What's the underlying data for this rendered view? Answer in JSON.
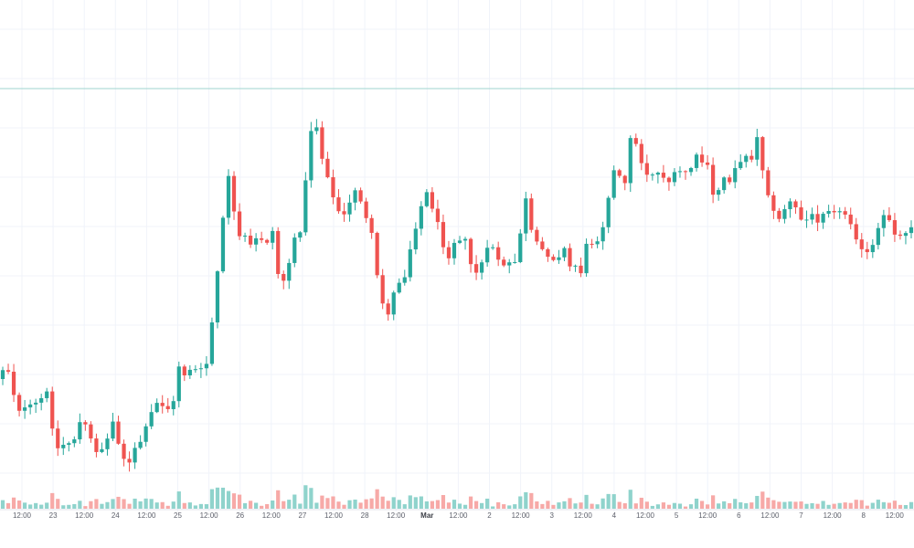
{
  "chart_data": {
    "type": "candlestick",
    "x_ticks": [
      "12:00",
      "23",
      "12:00",
      "24",
      "12:00",
      "25",
      "12:00",
      "26",
      "12:00",
      "27",
      "12:00",
      "28",
      "12:00",
      "Mar",
      "12:00",
      "2",
      "12:00",
      "3",
      "12:00",
      "4",
      "12:00",
      "5",
      "12:00",
      "6",
      "12:00",
      "7",
      "12:00",
      "8",
      "12:00"
    ],
    "x_tick_strong": [
      "Mar"
    ],
    "horizontal_line_level": 97,
    "grid": true,
    "colors": {
      "up": "#26a69a",
      "down": "#ef5350",
      "up_vol": "#8fd3cc",
      "down_vol": "#f7a9a7",
      "line": "#9fd6cf",
      "grid": "#f0f3fa"
    },
    "anchors": [
      [
        0,
        415
      ],
      [
        8,
        400
      ],
      [
        12,
        405
      ],
      [
        16,
        420
      ],
      [
        20,
        440
      ],
      [
        26,
        450
      ],
      [
        34,
        448
      ],
      [
        44,
        442
      ],
      [
        52,
        432
      ],
      [
        58,
        432
      ],
      [
        62,
        490
      ],
      [
        68,
        492
      ],
      [
        76,
        482
      ],
      [
        82,
        488
      ],
      [
        88,
        465
      ],
      [
        94,
        460
      ],
      [
        100,
        478
      ],
      [
        108,
        492
      ],
      [
        118,
        490
      ],
      [
        126,
        460
      ],
      [
        132,
        480
      ],
      [
        138,
        500
      ],
      [
        144,
        510
      ],
      [
        152,
        490
      ],
      [
        160,
        478
      ],
      [
        166,
        462
      ],
      [
        172,
        442
      ],
      [
        180,
        442
      ],
      [
        188,
        448
      ],
      [
        194,
        440
      ],
      [
        198,
        398
      ],
      [
        204,
        410
      ],
      [
        212,
        402
      ],
      [
        220,
        408
      ],
      [
        226,
        406
      ],
      [
        232,
        390
      ],
      [
        236,
        340
      ],
      [
        242,
        290
      ],
      [
        246,
        258
      ],
      [
        250,
        195
      ],
      [
        256,
        185
      ],
      [
        260,
        250
      ],
      [
        266,
        265
      ],
      [
        272,
        260
      ],
      [
        278,
        272
      ],
      [
        286,
        258
      ],
      [
        294,
        265
      ],
      [
        302,
        252
      ],
      [
        306,
        290
      ],
      [
        310,
        320
      ],
      [
        316,
        295
      ],
      [
        320,
        285
      ],
      [
        326,
        262
      ],
      [
        332,
        248
      ],
      [
        338,
        195
      ],
      [
        344,
        135
      ],
      [
        350,
        138
      ],
      [
        354,
        170
      ],
      [
        360,
        182
      ],
      [
        366,
        215
      ],
      [
        372,
        228
      ],
      [
        378,
        240
      ],
      [
        384,
        230
      ],
      [
        390,
        205
      ],
      [
        396,
        210
      ],
      [
        402,
        240
      ],
      [
        408,
        245
      ],
      [
        412,
        280
      ],
      [
        418,
        320
      ],
      [
        424,
        340
      ],
      [
        430,
        342
      ],
      [
        436,
        310
      ],
      [
        442,
        305
      ],
      [
        448,
        298
      ],
      [
        452,
        270
      ],
      [
        458,
        245
      ],
      [
        464,
        225
      ],
      [
        468,
        210
      ],
      [
        474,
        218
      ],
      [
        480,
        240
      ],
      [
        486,
        262
      ],
      [
        494,
        278
      ],
      [
        502,
        258
      ],
      [
        508,
        260
      ],
      [
        514,
        268
      ],
      [
        520,
        300
      ],
      [
        526,
        296
      ],
      [
        532,
        285
      ],
      [
        538,
        272
      ],
      [
        544,
        268
      ],
      [
        550,
        290
      ],
      [
        556,
        294
      ],
      [
        562,
        290
      ],
      [
        568,
        286
      ],
      [
        572,
        258
      ],
      [
        576,
        200
      ],
      [
        580,
        235
      ],
      [
        586,
        262
      ],
      [
        592,
        272
      ],
      [
        600,
        275
      ],
      [
        608,
        282
      ],
      [
        614,
        278
      ],
      [
        620,
        272
      ],
      [
        626,
        292
      ],
      [
        632,
        290
      ],
      [
        640,
        298
      ],
      [
        646,
        262
      ],
      [
        652,
        265
      ],
      [
        658,
        258
      ],
      [
        664,
        242
      ],
      [
        668,
        215
      ],
      [
        674,
        188
      ],
      [
        680,
        192
      ],
      [
        686,
        215
      ],
      [
        690,
        155
      ],
      [
        696,
        138
      ],
      [
        700,
        170
      ],
      [
        706,
        178
      ],
      [
        712,
        192
      ],
      [
        718,
        188
      ],
      [
        724,
        190
      ],
      [
        730,
        192
      ],
      [
        736,
        200
      ],
      [
        742,
        192
      ],
      [
        748,
        188
      ],
      [
        754,
        188
      ],
      [
        760,
        182
      ],
      [
        766,
        172
      ],
      [
        772,
        178
      ],
      [
        778,
        186
      ],
      [
        784,
        220
      ],
      [
        790,
        205
      ],
      [
        796,
        192
      ],
      [
        800,
        200
      ],
      [
        806,
        180
      ],
      [
        812,
        185
      ],
      [
        818,
        165
      ],
      [
        824,
        178
      ],
      [
        830,
        145
      ],
      [
        836,
        178
      ],
      [
        842,
        205
      ],
      [
        848,
        232
      ],
      [
        854,
        240
      ],
      [
        860,
        230
      ],
      [
        866,
        222
      ],
      [
        872,
        225
      ],
      [
        878,
        240
      ],
      [
        884,
        242
      ],
      [
        890,
        236
      ],
      [
        896,
        242
      ],
      [
        902,
        230
      ],
      [
        908,
        228
      ],
      [
        914,
        225
      ],
      [
        920,
        235
      ],
      [
        926,
        232
      ],
      [
        932,
        238
      ],
      [
        938,
        250
      ],
      [
        944,
        275
      ],
      [
        950,
        280
      ],
      [
        956,
        275
      ],
      [
        962,
        260
      ],
      [
        968,
        240
      ],
      [
        974,
        235
      ],
      [
        980,
        248
      ],
      [
        986,
        262
      ],
      [
        992,
        255
      ],
      [
        998,
        245
      ]
    ],
    "candle_count": 166
  }
}
